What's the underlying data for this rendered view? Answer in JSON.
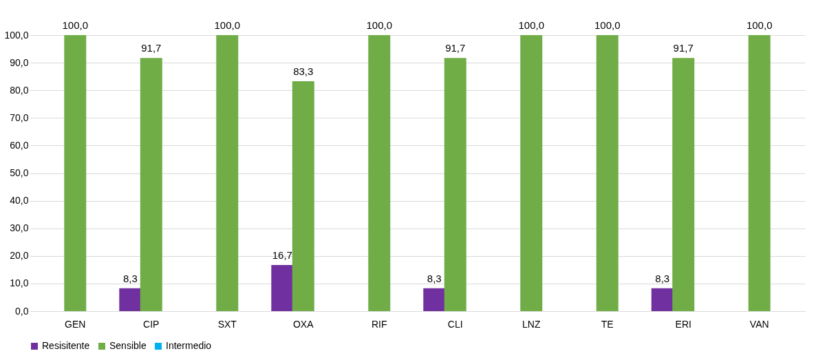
{
  "chart_data": {
    "type": "bar",
    "categories": [
      "GEN",
      "CIP",
      "SXT",
      "OXA",
      "RIF",
      "CLI",
      "LNZ",
      "TE",
      "ERI",
      "VAN"
    ],
    "series": [
      {
        "name": "Resisitente",
        "color": "#7030a0",
        "values": [
          null,
          8.3,
          null,
          16.7,
          null,
          8.3,
          null,
          null,
          8.3,
          null
        ],
        "value_labels": [
          null,
          "8,3",
          null,
          "16,7",
          null,
          "8,3",
          null,
          null,
          "8,3",
          null
        ]
      },
      {
        "name": "Sensible",
        "color": "#70ad47",
        "values": [
          100,
          91.7,
          100,
          83.3,
          100,
          91.7,
          100,
          100,
          91.7,
          100
        ],
        "value_labels": [
          "100,0",
          "91,7",
          "100,0",
          "83,3",
          "100,0",
          "91,7",
          "100,0",
          "100,0",
          "91,7",
          "100,0"
        ]
      },
      {
        "name": "Intermedio",
        "color": "#00b0f0",
        "values": [
          null,
          null,
          null,
          null,
          null,
          null,
          null,
          null,
          null,
          null
        ],
        "value_labels": [
          null,
          null,
          null,
          null,
          null,
          null,
          null,
          null,
          null,
          null
        ]
      }
    ],
    "ylim": [
      0,
      100
    ],
    "yticks": [
      {
        "value": 0,
        "label": "0,0"
      },
      {
        "value": 10,
        "label": "10,0"
      },
      {
        "value": 20,
        "label": "20,0"
      },
      {
        "value": 30,
        "label": "30,0"
      },
      {
        "value": 40,
        "label": "40,0"
      },
      {
        "value": 50,
        "label": "50,0"
      },
      {
        "value": 60,
        "label": "60,0"
      },
      {
        "value": 70,
        "label": "70,0"
      },
      {
        "value": 80,
        "label": "80,0"
      },
      {
        "value": 90,
        "label": "90,0"
      },
      {
        "value": 100,
        "label": "100,0"
      }
    ],
    "grid": "y",
    "legend": "bottom"
  }
}
